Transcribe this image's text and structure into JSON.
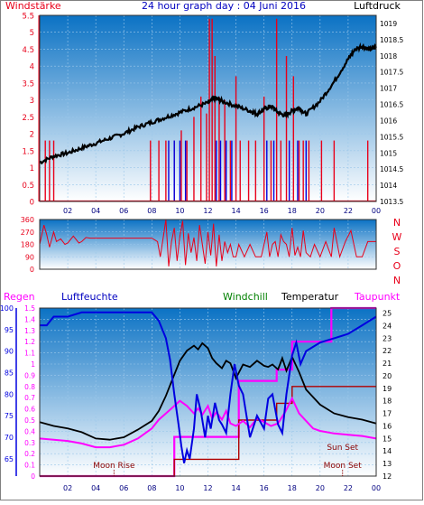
{
  "colors": {
    "bg_top": "#0b72c4",
    "bg_bottom": "#ffffff",
    "red": "#e8001a",
    "blue": "#0000e0",
    "black": "#000000",
    "magenta": "#ff00ff",
    "green": "#008000",
    "darkred": "#8b0000",
    "frame": "#404040"
  },
  "title": "24 hour graph day : 04 Juni 2016",
  "chart_data": [
    {
      "type": "line",
      "name": "wind_pressure",
      "left_label": "Windstärke",
      "right_label": "Luftdruck",
      "x_ticks": [
        "02",
        "04",
        "06",
        "08",
        "10",
        "12",
        "14",
        "16",
        "18",
        "20",
        "22",
        "00"
      ],
      "left_axis": {
        "ticks": [
          "0",
          "0.5",
          "1",
          "1.5",
          "2",
          "2.5",
          "3",
          "3.5",
          "4",
          "4.5",
          "5",
          "5.5"
        ],
        "ylim": [
          0,
          5.5
        ]
      },
      "right_axis": {
        "ticks": [
          "1013.5",
          "1014",
          "1014.5",
          "1015",
          "1015.5",
          "1016",
          "1016.5",
          "1017",
          "1017.5",
          "1018",
          "1018.5",
          "1019"
        ],
        "ylim": [
          1013.5,
          1019.25
        ]
      },
      "series": [
        {
          "key": "pressure",
          "axis": "right",
          "color_key": "black",
          "x": [
            0,
            1,
            2,
            3,
            4,
            5,
            6,
            7,
            8,
            9,
            10,
            11,
            12,
            12.5,
            13,
            14,
            15,
            15.5,
            16,
            16.5,
            17,
            17.5,
            18,
            18.5,
            19,
            20,
            21,
            22,
            22.5,
            23,
            23.5,
            24
          ],
          "y": [
            1014.7,
            1014.9,
            1015.0,
            1015.15,
            1015.3,
            1015.45,
            1015.6,
            1015.8,
            1015.95,
            1016.1,
            1016.25,
            1016.4,
            1016.55,
            1016.7,
            1016.6,
            1016.45,
            1016.3,
            1016.2,
            1016.35,
            1016.45,
            1016.25,
            1016.15,
            1016.3,
            1016.4,
            1016.2,
            1016.6,
            1017.2,
            1017.9,
            1018.2,
            1018.3,
            1018.2,
            1018.25
          ]
        },
        {
          "key": "wind_gust",
          "axis": "left",
          "color_key": "red",
          "style": "spikes",
          "base": 0,
          "spike_high": [
            [
              0.4,
              1.8
            ],
            [
              0.7,
              1.8
            ],
            [
              1.0,
              1.8
            ],
            [
              7.9,
              1.8
            ],
            [
              8.5,
              1.8
            ],
            [
              9.0,
              1.8
            ],
            [
              9.6,
              1.8
            ],
            [
              10.1,
              2.1
            ],
            [
              10.5,
              1.8
            ],
            [
              11.0,
              2.5
            ],
            [
              11.5,
              3.1
            ],
            [
              11.9,
              2.6
            ],
            [
              12.1,
              5.4
            ],
            [
              12.3,
              5.4
            ],
            [
              12.5,
              4.3
            ],
            [
              12.8,
              3.1
            ],
            [
              13.2,
              3.0
            ],
            [
              13.6,
              1.8
            ],
            [
              14.0,
              3.7
            ],
            [
              14.3,
              1.8
            ],
            [
              14.9,
              1.8
            ],
            [
              15.4,
              1.8
            ],
            [
              16.0,
              3.1
            ],
            [
              16.5,
              1.8
            ],
            [
              16.9,
              5.4
            ],
            [
              17.2,
              1.8
            ],
            [
              17.6,
              4.3
            ],
            [
              18.1,
              3.7
            ],
            [
              18.5,
              1.8
            ],
            [
              18.8,
              1.8
            ],
            [
              19.2,
              1.8
            ],
            [
              20.1,
              1.8
            ],
            [
              21.0,
              1.8
            ],
            [
              23.4,
              1.8
            ]
          ]
        },
        {
          "key": "wind_avg",
          "axis": "left",
          "color_key": "blue",
          "style": "spikes",
          "base": 0,
          "spike_high": [
            [
              9.2,
              1.8
            ],
            [
              9.6,
              1.8
            ],
            [
              10.0,
              1.8
            ],
            [
              10.4,
              1.8
            ],
            [
              12.6,
              1.8
            ],
            [
              12.9,
              1.8
            ],
            [
              13.3,
              1.8
            ],
            [
              13.7,
              1.8
            ],
            [
              16.2,
              1.8
            ],
            [
              16.7,
              1.8
            ],
            [
              17.8,
              1.8
            ],
            [
              18.4,
              1.8
            ],
            [
              19.0,
              1.8
            ]
          ]
        }
      ]
    },
    {
      "type": "line",
      "name": "wind_direction",
      "left_axis": {
        "ticks": [
          "0",
          "90",
          "180",
          "270",
          "360"
        ],
        "ylim": [
          0,
          360
        ]
      },
      "right_labels": [
        "N",
        "W",
        "S",
        "O",
        "N"
      ],
      "series": [
        {
          "key": "direction",
          "color_key": "red",
          "x": [
            0.0,
            0.3,
            0.5,
            0.7,
            1.0,
            1.2,
            1.5,
            1.8,
            2.0,
            2.4,
            2.8,
            3.0,
            3.3,
            3.6,
            4.0,
            5.0,
            6.0,
            7.0,
            8.0,
            8.4,
            8.6,
            9.0,
            9.2,
            9.4,
            9.6,
            9.8,
            10.0,
            10.2,
            10.4,
            10.6,
            10.8,
            11.0,
            11.2,
            11.4,
            11.6,
            11.8,
            12.0,
            12.2,
            12.4,
            12.6,
            12.8,
            13.0,
            13.2,
            13.4,
            13.6,
            13.8,
            14.0,
            14.2,
            14.6,
            15.0,
            15.4,
            15.8,
            16.0,
            16.2,
            16.4,
            16.6,
            16.8,
            17.0,
            17.2,
            17.4,
            17.6,
            17.8,
            18.0,
            18.2,
            18.4,
            18.6,
            18.8,
            19.0,
            19.3,
            19.6,
            20.0,
            20.4,
            20.8,
            21.0,
            21.4,
            21.8,
            22.2,
            22.6,
            23.0,
            23.4,
            24.0
          ],
          "y": [
            180,
            320,
            250,
            160,
            270,
            200,
            220,
            180,
            190,
            240,
            190,
            200,
            230,
            225,
            225,
            225,
            225,
            225,
            225,
            200,
            90,
            360,
            20,
            200,
            300,
            60,
            240,
            350,
            30,
            260,
            120,
            230,
            60,
            320,
            180,
            40,
            270,
            100,
            330,
            20,
            250,
            60,
            200,
            120,
            180,
            90,
            90,
            180,
            90,
            180,
            90,
            90,
            180,
            270,
            90,
            180,
            200,
            90,
            250,
            200,
            180,
            90,
            300,
            100,
            160,
            90,
            280,
            120,
            90,
            180,
            90,
            200,
            90,
            300,
            90,
            200,
            280,
            90,
            90,
            200,
            225
          ]
        }
      ]
    },
    {
      "type": "line",
      "name": "temp_humidity",
      "labels": {
        "rain": "Regen",
        "humidity": "Luftfeuchte",
        "windchill": "Windchill",
        "temperature": "Temperatur",
        "dewpoint": "Taupunkt"
      },
      "annotations": {
        "moon_rise": "Moon Rise",
        "moon_set": "Moon Set",
        "sun_set": "Sun Set",
        "moon_rise_x": 5.3,
        "moon_set_x": 21.6,
        "sun_set_x": 21.6
      },
      "x_ticks": [
        "02",
        "04",
        "06",
        "08",
        "10",
        "12",
        "14",
        "16",
        "18",
        "20",
        "22",
        "00"
      ],
      "humidity_axis": {
        "ticks": [
          "65",
          "70",
          "75",
          "80",
          "85",
          "90",
          "95",
          "100"
        ],
        "ylim": [
          61,
          100
        ]
      },
      "rain_axis": {
        "ticks": [
          "0",
          "0.1",
          "0.2",
          "0.3",
          "0.4",
          "0.5",
          "0.6",
          "0.7",
          "0.8",
          "0.9",
          "1",
          "1.1",
          "1.2",
          "1.3",
          "1.4",
          "1.5"
        ],
        "ylim": [
          0,
          1.5
        ]
      },
      "temp_axis": {
        "ticks": [
          "12",
          "13",
          "14",
          "15",
          "16",
          "17",
          "18",
          "19",
          "20",
          "21",
          "22",
          "23",
          "24",
          "25"
        ],
        "ylim": [
          12,
          25.4
        ]
      },
      "series": [
        {
          "key": "humidity",
          "color_key": "blue",
          "axis": "humidity",
          "x": [
            0,
            0.5,
            1,
            2,
            3,
            4,
            5,
            6,
            7,
            8,
            8.5,
            9,
            9.3,
            9.6,
            9.9,
            10.1,
            10.3,
            10.5,
            10.7,
            11,
            11.2,
            11.5,
            11.8,
            12,
            12.2,
            12.5,
            12.8,
            13,
            13.3,
            13.6,
            13.9,
            14.2,
            14.5,
            15,
            15.5,
            16,
            16.3,
            16.6,
            17,
            17.3,
            17.6,
            18,
            18.3,
            18.6,
            19,
            19.5,
            20,
            21,
            22,
            22.5,
            23,
            23.5,
            24
          ],
          "y": [
            96,
            96,
            98,
            98,
            99,
            99,
            99,
            99,
            99,
            99,
            97,
            93,
            88,
            80,
            73,
            68,
            64,
            67,
            65,
            72,
            80,
            76,
            70,
            75,
            72,
            78,
            74,
            73,
            71,
            80,
            87,
            82,
            80,
            70,
            75,
            72,
            79,
            80,
            73,
            71,
            80,
            89,
            92,
            87,
            90,
            91,
            92,
            93,
            94,
            95,
            96,
            97,
            98
          ]
        },
        {
          "key": "temperature",
          "color_key": "black",
          "axis": "temp",
          "x": [
            0,
            1,
            2,
            3,
            4,
            5,
            6,
            7,
            8,
            8.5,
            9,
            9.5,
            10,
            10.5,
            11,
            11.3,
            11.6,
            12,
            12.3,
            12.6,
            13,
            13.3,
            13.6,
            14,
            14.5,
            15,
            15.5,
            16,
            16.3,
            16.6,
            17,
            17.3,
            17.6,
            18,
            18.5,
            19,
            20,
            21,
            22,
            23,
            24
          ],
          "y": [
            16.3,
            16.0,
            15.8,
            15.5,
            15.0,
            14.9,
            15.1,
            15.7,
            16.4,
            17.2,
            18.4,
            19.8,
            21.2,
            22.0,
            22.4,
            22.1,
            22.6,
            22.2,
            21.4,
            21.0,
            20.6,
            21.2,
            21.0,
            19.8,
            20.9,
            20.7,
            21.2,
            20.8,
            20.7,
            20.9,
            20.5,
            21.4,
            20.4,
            21.5,
            20.3,
            18.9,
            17.7,
            17.0,
            16.7,
            16.5,
            16.2
          ]
        },
        {
          "key": "dewpoint",
          "color_key": "magenta",
          "axis": "temp",
          "x": [
            0,
            1,
            2,
            3,
            4,
            5,
            6,
            7,
            8,
            8.5,
            9,
            9.5,
            10,
            10.5,
            11,
            11.3,
            11.6,
            12,
            12.3,
            12.6,
            13,
            13.3,
            13.6,
            14,
            14.5,
            15,
            15.5,
            16,
            16.5,
            17,
            17.5,
            18,
            18.5,
            19,
            19.5,
            20,
            21,
            22,
            23,
            24
          ],
          "y": [
            15.0,
            14.9,
            14.8,
            14.6,
            14.3,
            14.3,
            14.5,
            15.0,
            15.8,
            16.5,
            17.0,
            17.5,
            18.0,
            17.6,
            17.0,
            17.4,
            16.9,
            17.6,
            16.6,
            17.1,
            16.5,
            17.2,
            16.2,
            16.0,
            16.4,
            15.9,
            16.6,
            16.3,
            16.0,
            16.2,
            17.1,
            18.2,
            17.0,
            16.4,
            15.8,
            15.6,
            15.4,
            15.3,
            15.2,
            15.0
          ]
        },
        {
          "key": "rain",
          "color_key": "magenta",
          "axis": "rain",
          "style": "step",
          "x": [
            0,
            9.6,
            9.6,
            14.2,
            14.2,
            16.9,
            16.9,
            18.0,
            18.0,
            24
          ],
          "y": [
            0,
            0,
            0.15,
            0.15,
            0.5,
            0.5,
            0.65,
            0.65,
            0.8,
            0.8
          ]
        },
        {
          "key": "rain_total",
          "color_key": "darkred",
          "axis": "rain",
          "style": "step",
          "x": [
            0,
            9.6,
            9.6,
            14.2,
            14.2,
            16.9,
            16.9,
            18.0,
            18.0,
            20.8,
            20.8,
            24
          ],
          "y": [
            0,
            0,
            0.35,
            0.35,
            0.85,
            0.85,
            0.95,
            0.95,
            1.2,
            1.2,
            1.5,
            1.5
          ]
        }
      ]
    }
  ]
}
